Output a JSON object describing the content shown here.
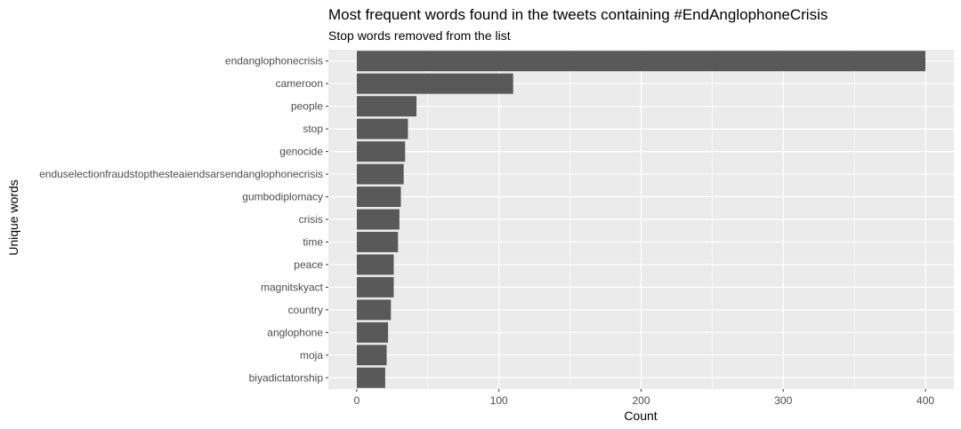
{
  "chart_data": {
    "type": "bar",
    "orientation": "horizontal",
    "title": "Most frequent words found in the tweets containing #EndAnglophoneCrisis",
    "subtitle": "Stop words removed from the list",
    "xlabel": "Count",
    "ylabel": "Unique words",
    "categories": [
      "endanglophonecrisis",
      "cameroon",
      "people",
      "stop",
      "genocide",
      "enduselectionfraudstopthesteaiendsarsendanglophonecrisis",
      "gumbodiplomacy",
      "crisis",
      "time",
      "peace",
      "magnitskyact",
      "country",
      "anglophone",
      "moja",
      "biyadictatorship"
    ],
    "values": [
      400,
      110,
      42,
      36,
      34,
      33,
      31,
      30,
      29,
      26,
      26,
      24,
      22,
      21,
      20
    ],
    "xlim": [
      -20,
      420
    ],
    "xticks": [
      0,
      100,
      200,
      300,
      400
    ],
    "grid": true,
    "bar_color": "#595959",
    "panel_color": "#ebebeb",
    "grid_color": "#ffffff"
  }
}
